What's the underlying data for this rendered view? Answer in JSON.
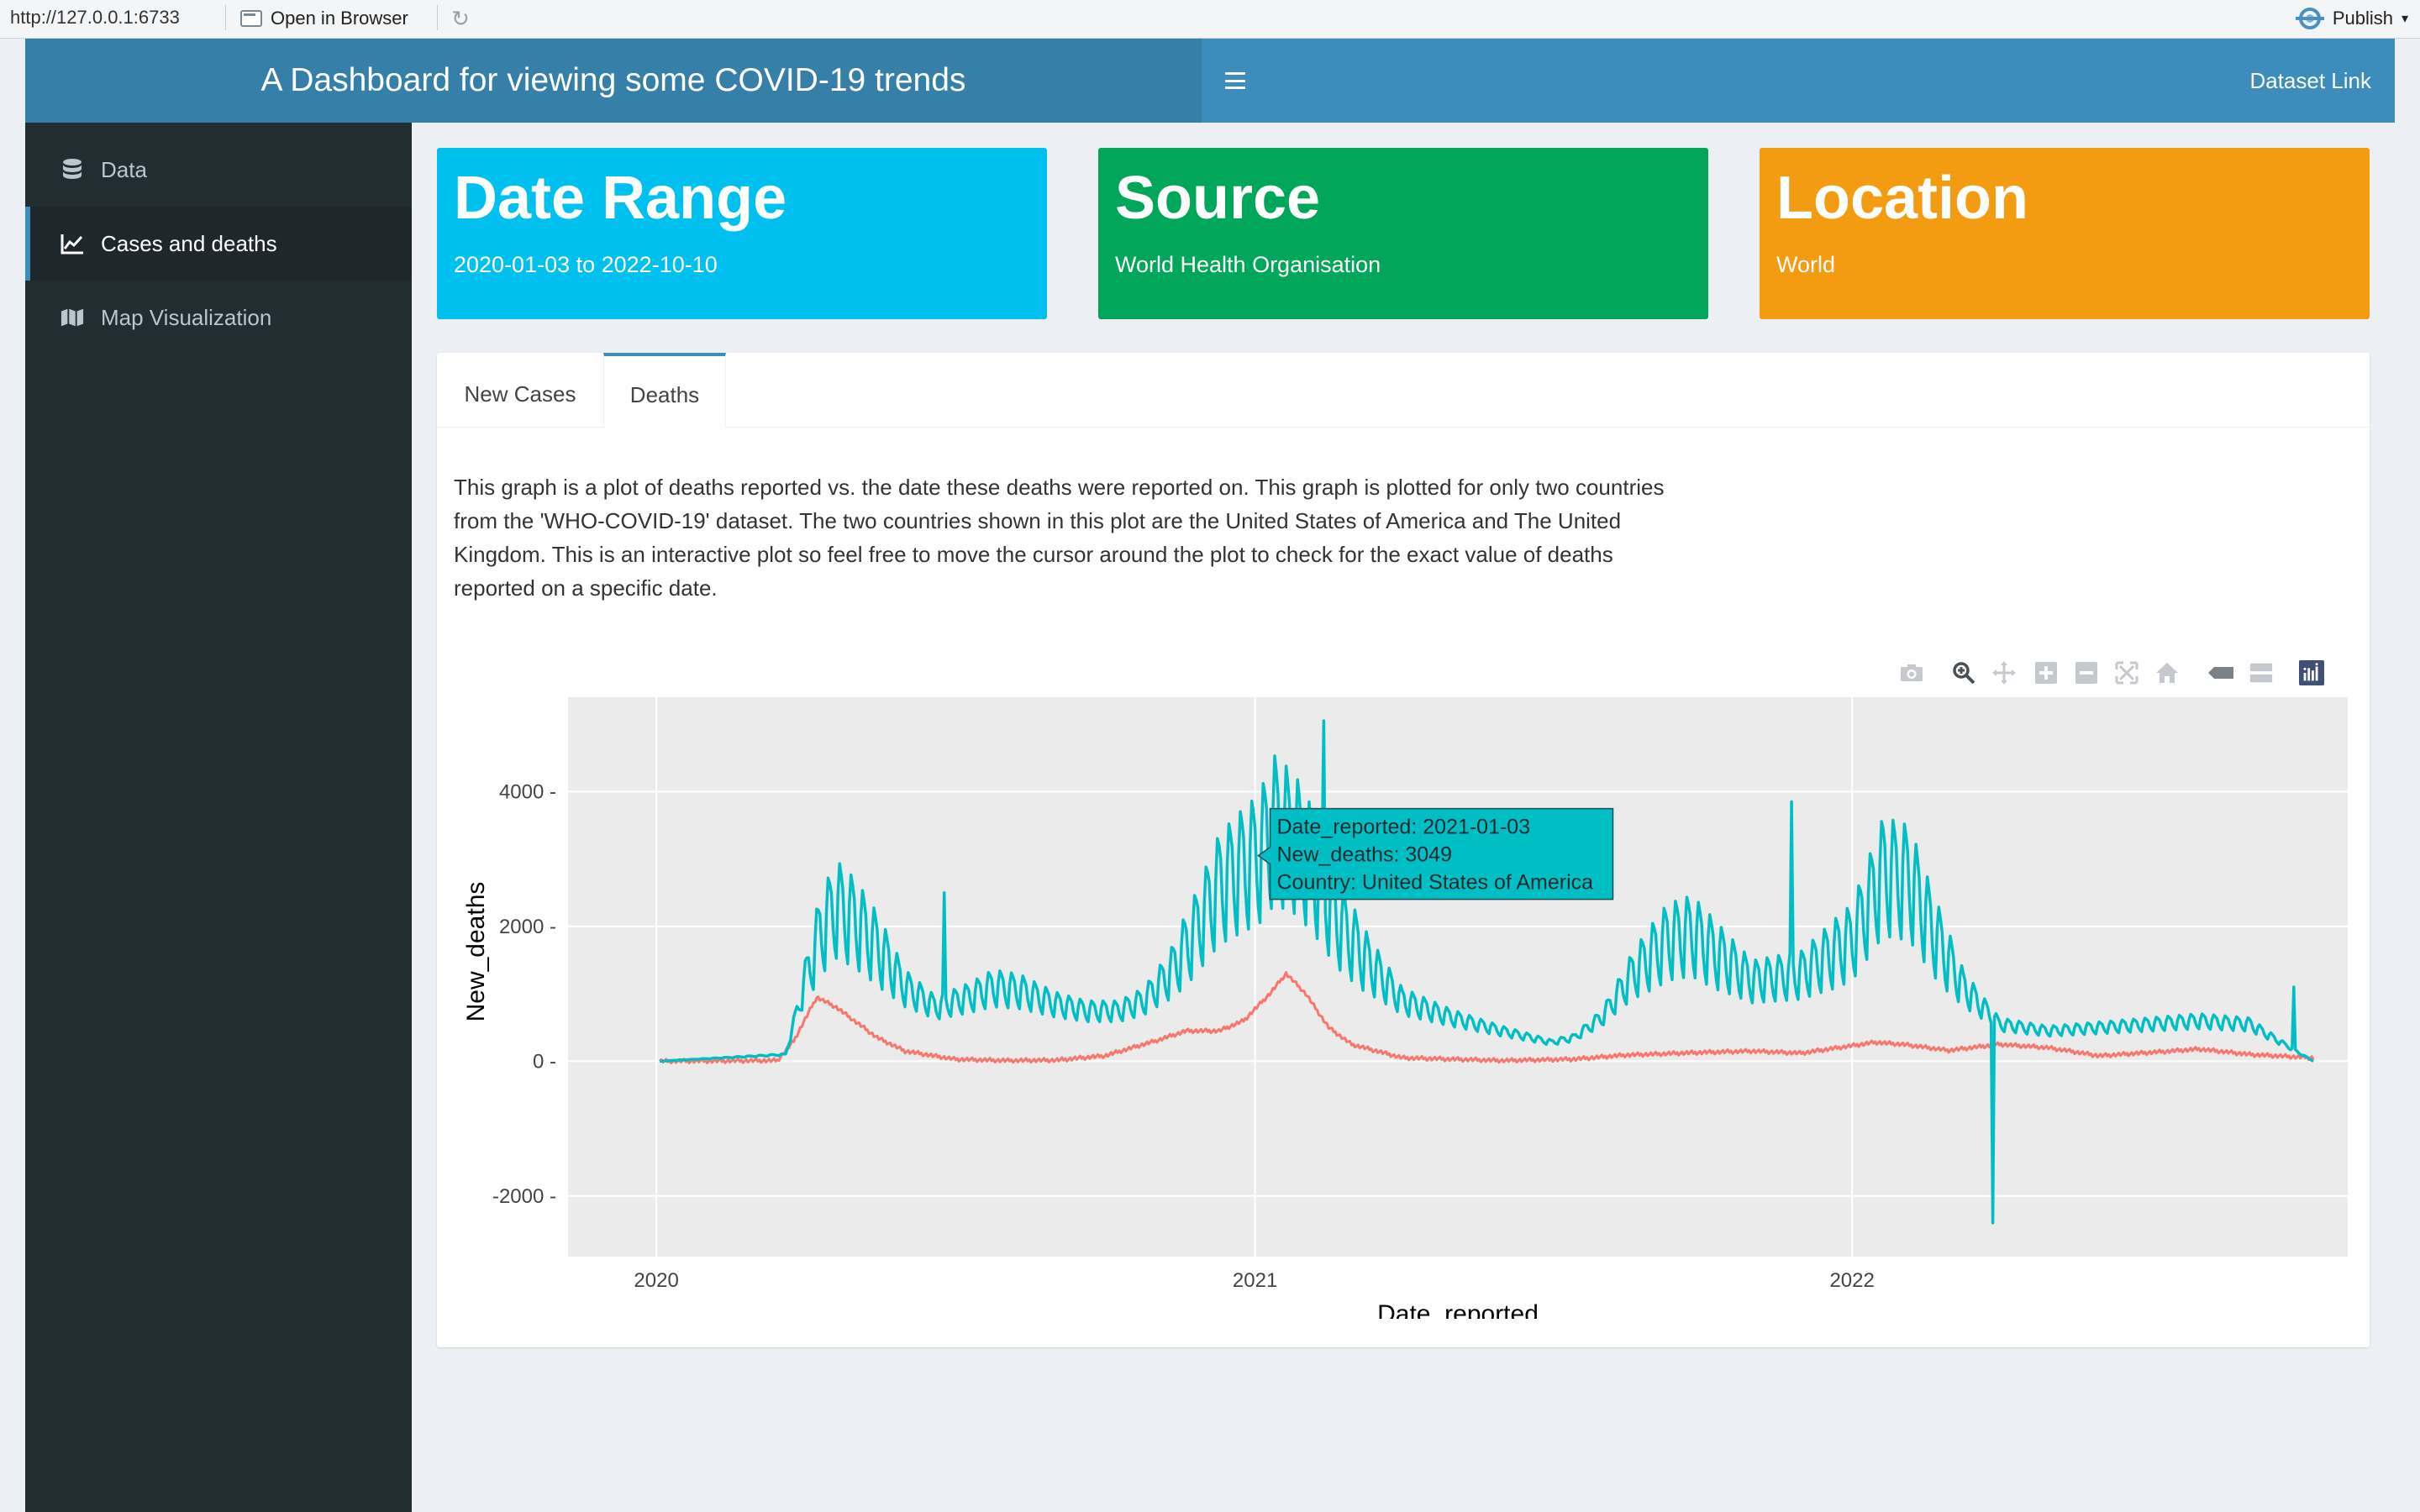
{
  "viewer": {
    "url": "http://127.0.0.1:6733",
    "open_in_browser": "Open in Browser",
    "publish": "Publish"
  },
  "header": {
    "title": "A Dashboard for viewing some COVID-19 trends",
    "dataset_link": "Dataset Link"
  },
  "sidebar": {
    "items": [
      {
        "label": "Data",
        "icon": "database-icon"
      },
      {
        "label": "Cases and deaths",
        "icon": "line-chart-icon",
        "active": true
      },
      {
        "label": "Map Visualization",
        "icon": "map-icon"
      }
    ]
  },
  "value_boxes": {
    "date": {
      "title": "Date Range",
      "value": "2020-01-03 to 2022-10-10",
      "color": "#00c0ef"
    },
    "source": {
      "title": "Source",
      "value": "World Health Organisation",
      "color": "#00a65a"
    },
    "location": {
      "title": "Location",
      "value": "World",
      "color": "#f39c12"
    }
  },
  "tabs": {
    "new_cases": "New Cases",
    "deaths": "Deaths"
  },
  "description": "This graph is a plot of deaths reported vs. the date these deaths were reported on. This graph is plotted for only two countries from the 'WHO-COVID-19' dataset. The two countries shown in this plot are the United States of America and The United Kingdom. This is an interactive plot so feel free to move the cursor around the plot to check for the exact value of deaths reported on a specific date.",
  "modebar": [
    "camera-icon",
    "zoom-icon",
    "pan-icon",
    "zoom-in-icon",
    "zoom-out-icon",
    "autoscale-icon",
    "reset-axes-icon",
    "hover-closest-icon",
    "hover-compare-icon",
    "plotly-logo-icon"
  ],
  "chart_data": {
    "type": "line",
    "xlabel": "Date_reported",
    "ylabel": "New_deaths",
    "xticks": [
      "2020",
      "2021",
      "2022"
    ],
    "yticks": [
      -2000,
      0,
      2000,
      4000
    ],
    "ylim": [
      -2900,
      5400
    ],
    "xlim": [
      "2019-11-08",
      "2022-10-31"
    ],
    "grid": true,
    "series": [
      {
        "color": "#00bfc4",
        "weekly_oscillation": true,
        "points": [
          [
            "2020-01-03",
            0
          ],
          [
            "2020-03-20",
            100
          ],
          [
            "2020-04-01",
            1200
          ],
          [
            "2020-04-10",
            1900
          ],
          [
            "2020-04-20",
            2300
          ],
          [
            "2020-05-01",
            2100
          ],
          [
            "2020-05-15",
            1700
          ],
          [
            "2020-06-01",
            1100
          ],
          [
            "2020-06-20",
            800
          ],
          [
            "2020-07-10",
            950
          ],
          [
            "2020-07-25",
            1100
          ],
          [
            "2020-08-10",
            1050
          ],
          [
            "2020-09-01",
            850
          ],
          [
            "2020-09-20",
            750
          ],
          [
            "2020-10-10",
            750
          ],
          [
            "2020-10-25",
            900
          ],
          [
            "2020-11-10",
            1300
          ],
          [
            "2020-11-25",
            1900
          ],
          [
            "2020-12-10",
            2600
          ],
          [
            "2020-12-25",
            2900
          ],
          [
            "2021-01-03",
            3049
          ],
          [
            "2021-01-13",
            3500
          ],
          [
            "2021-01-25",
            3300
          ],
          [
            "2021-02-05",
            2900
          ],
          [
            "2021-02-20",
            2100
          ],
          [
            "2021-03-10",
            1500
          ],
          [
            "2021-04-01",
            900
          ],
          [
            "2021-05-01",
            650
          ],
          [
            "2021-06-01",
            450
          ],
          [
            "2021-07-01",
            280
          ],
          [
            "2021-07-15",
            350
          ],
          [
            "2021-08-01",
            650
          ],
          [
            "2021-08-20",
            1300
          ],
          [
            "2021-09-10",
            1800
          ],
          [
            "2021-09-25",
            1900
          ],
          [
            "2021-10-10",
            1600
          ],
          [
            "2021-11-01",
            1200
          ],
          [
            "2021-12-01",
            1300
          ],
          [
            "2022-01-01",
            1800
          ],
          [
            "2022-01-20",
            2800
          ],
          [
            "2022-02-05",
            2700
          ],
          [
            "2022-02-20",
            1900
          ],
          [
            "2022-03-10",
            1100
          ],
          [
            "2022-04-01",
            550
          ],
          [
            "2022-05-01",
            450
          ],
          [
            "2022-06-01",
            500
          ],
          [
            "2022-07-01",
            550
          ],
          [
            "2022-08-01",
            600
          ],
          [
            "2022-09-01",
            550
          ],
          [
            "2022-10-10",
            0
          ]
        ],
        "spikes": [
          [
            "2020-06-25",
            2500
          ],
          [
            "2021-02-12",
            5050
          ],
          [
            "2021-11-25",
            3850
          ],
          [
            "2022-03-28",
            -2400
          ],
          [
            "2022-09-28",
            1100
          ]
        ]
      },
      {
        "color": "#f8766d",
        "points": [
          [
            "2020-01-03",
            0
          ],
          [
            "2020-03-15",
            10
          ],
          [
            "2020-03-25",
            300
          ],
          [
            "2020-04-08",
            950
          ],
          [
            "2020-04-20",
            800
          ],
          [
            "2020-05-01",
            600
          ],
          [
            "2020-05-15",
            350
          ],
          [
            "2020-06-01",
            150
          ],
          [
            "2020-07-01",
            30
          ],
          [
            "2020-08-01",
            10
          ],
          [
            "2020-09-01",
            15
          ],
          [
            "2020-10-01",
            80
          ],
          [
            "2020-11-01",
            300
          ],
          [
            "2020-11-20",
            450
          ],
          [
            "2020-12-10",
            450
          ],
          [
            "2020-12-25",
            600
          ],
          [
            "2021-01-10",
            1000
          ],
          [
            "2021-01-20",
            1300
          ],
          [
            "2021-02-01",
            1000
          ],
          [
            "2021-02-15",
            500
          ],
          [
            "2021-03-01",
            250
          ],
          [
            "2021-04-01",
            50
          ],
          [
            "2021-06-01",
            10
          ],
          [
            "2021-07-15",
            30
          ],
          [
            "2021-08-15",
            90
          ],
          [
            "2021-10-01",
            130
          ],
          [
            "2021-11-01",
            150
          ],
          [
            "2021-12-01",
            120
          ],
          [
            "2022-01-15",
            280
          ],
          [
            "2022-02-01",
            250
          ],
          [
            "2022-03-01",
            160
          ],
          [
            "2022-04-01",
            250
          ],
          [
            "2022-05-01",
            200
          ],
          [
            "2022-06-01",
            80
          ],
          [
            "2022-07-15",
            150
          ],
          [
            "2022-08-01",
            180
          ],
          [
            "2022-09-01",
            100
          ],
          [
            "2022-10-10",
            50
          ]
        ]
      }
    ],
    "tooltip": {
      "x": "2021-01-03",
      "y": 3049,
      "lines": [
        "Date_reported: 2021-01-03",
        "New_deaths:  3049",
        "Country: United States of America"
      ],
      "color": "#00bfc4"
    }
  }
}
